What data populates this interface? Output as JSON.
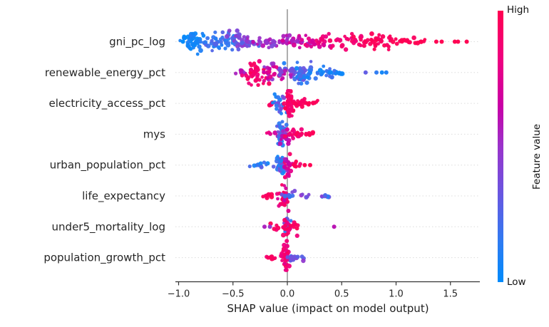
{
  "page": {
    "background": "#ffffff"
  },
  "colorbar": {
    "title": "Feature value",
    "high_label": "High",
    "low_label": "Low",
    "color_high": "#ff0051",
    "color_low": "#008bfb"
  },
  "chart_data": {
    "type": "scatter",
    "variant": "shap_beeswarm_summary",
    "xlabel": "SHAP value (impact on model output)",
    "xlim": [
      -1.05,
      1.78
    ],
    "x_ticks": [
      {
        "value": -1.0,
        "label": "−1.0"
      },
      {
        "value": -0.5,
        "label": "−0.5"
      },
      {
        "value": 0.0,
        "label": "0.0"
      },
      {
        "value": 0.5,
        "label": "0.5"
      },
      {
        "value": 1.0,
        "label": "1.0"
      },
      {
        "value": 1.5,
        "label": "1.5"
      }
    ],
    "zero_reference_line": 0.0,
    "grid": "dotted-horizontal-per-row",
    "legend_position": "right-colorbar",
    "colors": {
      "background": "#ffffff",
      "gridline": "#dcdcdc",
      "zero_line": "#999999",
      "spine": "#333333",
      "text": "#262626",
      "stops": [
        {
          "pos": 0.0,
          "color": "#008bfb"
        },
        {
          "pos": 0.15,
          "color": "#2f7bf2"
        },
        {
          "pos": 0.33,
          "color": "#6a55e0"
        },
        {
          "pos": 0.5,
          "color": "#9a33cb"
        },
        {
          "pos": 0.65,
          "color": "#c900a6"
        },
        {
          "pos": 0.82,
          "color": "#ef0180"
        },
        {
          "pos": 1.0,
          "color": "#ff0051"
        }
      ]
    },
    "features": [
      {
        "name": "gni_pc_log",
        "shap_min": -0.97,
        "shap_max": 1.66,
        "clusters": [
          {
            "cx": -0.87,
            "sx": 0.05,
            "n": 40,
            "t0": 0.0,
            "t1": 0.12,
            "sy": 8.5
          },
          {
            "cx": -0.63,
            "sx": 0.09,
            "n": 48,
            "t0": 0.08,
            "t1": 0.32,
            "sy": 6
          },
          {
            "cx": -0.42,
            "sx": 0.07,
            "n": 36,
            "t0": 0.22,
            "t1": 0.48,
            "sy": 7
          },
          {
            "cx": -0.18,
            "sx": 0.1,
            "n": 30,
            "t0": 0.38,
            "t1": 0.62,
            "sy": 4.5
          },
          {
            "cx": 0.08,
            "sx": 0.1,
            "n": 26,
            "t0": 0.52,
            "t1": 0.78,
            "sy": 4
          },
          {
            "cx": 0.33,
            "sx": 0.09,
            "n": 26,
            "t0": 0.68,
            "t1": 0.92,
            "sy": 5
          },
          {
            "cx": 0.6,
            "sx": 0.09,
            "n": 26,
            "t0": 0.85,
            "t1": 1.0,
            "sy": 5
          },
          {
            "cx": 0.82,
            "sx": 0.08,
            "n": 30,
            "t0": 0.9,
            "t1": 1.0,
            "sy": 6
          },
          {
            "cx": 1.05,
            "sx": 0.09,
            "n": 14,
            "t0": 0.95,
            "t1": 1.0,
            "sy": 2.5
          },
          {
            "cx": 1.22,
            "sx": 0.05,
            "n": 6,
            "t0": 1.0,
            "t1": 1.0,
            "sy": 1.5
          }
        ],
        "points": [
          {
            "x": -0.96,
            "t": 0.0
          },
          {
            "x": 1.37,
            "t": 1
          },
          {
            "x": 1.42,
            "t": 1
          },
          {
            "x": 1.54,
            "t": 1
          },
          {
            "x": 1.57,
            "t": 1
          },
          {
            "x": 1.65,
            "t": 1
          }
        ]
      },
      {
        "name": "renewable_energy_pct",
        "shap_min": -0.47,
        "shap_max": 0.92,
        "clusters": [
          {
            "cx": -0.42,
            "sx": 0.025,
            "n": 8,
            "t0": 0.5,
            "t1": 0.75,
            "sy": 2.5
          },
          {
            "cx": -0.28,
            "sx": 0.05,
            "n": 42,
            "t0": 0.82,
            "t1": 1.0,
            "sy": 9
          },
          {
            "cx": -0.13,
            "sx": 0.06,
            "n": 30,
            "t0": 0.45,
            "t1": 0.85,
            "sy": 6
          },
          {
            "cx": 0.02,
            "sx": 0.05,
            "n": 24,
            "t0": 0.25,
            "t1": 0.6,
            "sy": 5
          },
          {
            "cx": 0.13,
            "sx": 0.05,
            "n": 30,
            "t0": 0.05,
            "t1": 0.35,
            "sy": 7
          },
          {
            "cx": 0.28,
            "sx": 0.08,
            "n": 28,
            "t0": 0.0,
            "t1": 0.25,
            "sy": 4
          },
          {
            "cx": 0.47,
            "sx": 0.05,
            "n": 8,
            "t0": 0.0,
            "t1": 0.2,
            "sy": 2
          }
        ],
        "points": [
          {
            "x": 0.72,
            "t": 0.3
          },
          {
            "x": 0.82,
            "t": 0.15
          },
          {
            "x": 0.87,
            "t": 0.05
          },
          {
            "x": 0.91,
            "t": 0.1
          }
        ]
      },
      {
        "name": "electricity_access_pct",
        "shap_min": -0.17,
        "shap_max": 0.29,
        "clusters": [
          {
            "cx": -0.14,
            "sx": 0.02,
            "n": 6,
            "t0": 0.9,
            "t1": 1.0,
            "sy": 2
          },
          {
            "cx": -0.07,
            "sx": 0.03,
            "n": 22,
            "t0": 0.05,
            "t1": 0.45,
            "sy": 6.5
          },
          {
            "cx": 0.02,
            "sx": 0.025,
            "n": 46,
            "t0": 0.85,
            "t1": 1.0,
            "sy": 9.5
          },
          {
            "cx": 0.1,
            "sx": 0.04,
            "n": 18,
            "t0": 0.9,
            "t1": 1.0,
            "sy": 3
          },
          {
            "cx": 0.22,
            "sx": 0.04,
            "n": 7,
            "t0": 0.95,
            "t1": 1.0,
            "sy": 1.8
          }
        ],
        "points": []
      },
      {
        "name": "mys",
        "shap_min": -0.18,
        "shap_max": 0.23,
        "clusters": [
          {
            "cx": -0.15,
            "sx": 0.02,
            "n": 5,
            "t0": 0.6,
            "t1": 0.9,
            "sy": 2
          },
          {
            "cx": -0.06,
            "sx": 0.025,
            "n": 30,
            "t0": 0.05,
            "t1": 0.4,
            "sy": 9
          },
          {
            "cx": -0.01,
            "sx": 0.03,
            "n": 20,
            "t0": 0.4,
            "t1": 0.75,
            "sy": 6
          },
          {
            "cx": 0.07,
            "sx": 0.04,
            "n": 20,
            "t0": 0.8,
            "t1": 1.0,
            "sy": 3.5
          },
          {
            "cx": 0.17,
            "sx": 0.035,
            "n": 8,
            "t0": 0.9,
            "t1": 1.0,
            "sy": 1.8
          }
        ],
        "points": []
      },
      {
        "name": "urban_population_pct",
        "shap_min": -0.33,
        "shap_max": 0.22,
        "clusters": [
          {
            "cx": -0.25,
            "sx": 0.055,
            "n": 11,
            "t0": 0.0,
            "t1": 0.3,
            "sy": 1.8
          },
          {
            "cx": -0.07,
            "sx": 0.03,
            "n": 28,
            "t0": 0.0,
            "t1": 0.45,
            "sy": 8
          },
          {
            "cx": 0.0,
            "sx": 0.025,
            "n": 22,
            "t0": 0.55,
            "t1": 0.95,
            "sy": 7
          },
          {
            "cx": 0.08,
            "sx": 0.03,
            "n": 8,
            "t0": 0.85,
            "t1": 1.0,
            "sy": 2.5
          }
        ],
        "points": [
          {
            "x": 0.16,
            "t": 1
          },
          {
            "x": 0.21,
            "t": 1
          },
          {
            "x": -0.02,
            "dy": 17,
            "t": 0.85
          }
        ]
      },
      {
        "name": "life_expectancy",
        "shap_min": -0.22,
        "shap_max": 0.41,
        "clusters": [
          {
            "cx": -0.17,
            "sx": 0.035,
            "n": 8,
            "t0": 0.9,
            "t1": 1.0,
            "sy": 1.8
          },
          {
            "cx": -0.04,
            "sx": 0.035,
            "n": 34,
            "t0": 0.65,
            "t1": 1.0,
            "sy": 8.5
          },
          {
            "cx": 0.02,
            "sx": 0.03,
            "n": 10,
            "t0": 0.1,
            "t1": 0.4,
            "sy": 5
          },
          {
            "cx": 0.17,
            "sx": 0.03,
            "n": 5,
            "t0": 0.2,
            "t1": 0.55,
            "sy": 1.5
          },
          {
            "cx": 0.355,
            "sx": 0.03,
            "n": 6,
            "t0": 0.1,
            "t1": 0.45,
            "sy": 1.5
          }
        ],
        "points": [
          {
            "x": 0.01,
            "dy": 21,
            "t": 0.75
          }
        ]
      },
      {
        "name": "under5_mortality_log",
        "shap_min": -0.21,
        "shap_max": 0.43,
        "clusters": [
          {
            "cx": -0.1,
            "sx": 0.02,
            "n": 5,
            "t0": 0.85,
            "t1": 1.0,
            "sy": 2
          },
          {
            "cx": -0.01,
            "sx": 0.025,
            "n": 22,
            "t0": 0.1,
            "t1": 0.45,
            "sy": 7
          },
          {
            "cx": 0.01,
            "sx": 0.03,
            "n": 18,
            "t0": 0.75,
            "t1": 1.0,
            "sy": 9
          },
          {
            "cx": 0.08,
            "sx": 0.03,
            "n": 7,
            "t0": 0.9,
            "t1": 1.0,
            "sy": 2
          }
        ],
        "points": [
          {
            "x": -0.21,
            "t": 0.55
          },
          {
            "x": -0.16,
            "t": 0.5
          },
          {
            "x": 0.43,
            "t": 0.6
          },
          {
            "x": -0.005,
            "dy": 20,
            "t": 0.85
          }
        ]
      },
      {
        "name": "population_growth_pct",
        "shap_min": -0.18,
        "shap_max": 0.16,
        "clusters": [
          {
            "cx": -0.14,
            "sx": 0.03,
            "n": 9,
            "t0": 0.85,
            "t1": 1.0,
            "sy": 1.5
          },
          {
            "cx": -0.015,
            "sx": 0.025,
            "n": 32,
            "t0": 0.7,
            "t1": 1.0,
            "sy": 9
          },
          {
            "cx": 0.03,
            "sx": 0.02,
            "n": 9,
            "t0": 0.1,
            "t1": 0.4,
            "sy": 4
          },
          {
            "cx": 0.11,
            "sx": 0.03,
            "n": 7,
            "t0": 0.2,
            "t1": 0.6,
            "sy": 2
          }
        ],
        "points": []
      }
    ]
  }
}
